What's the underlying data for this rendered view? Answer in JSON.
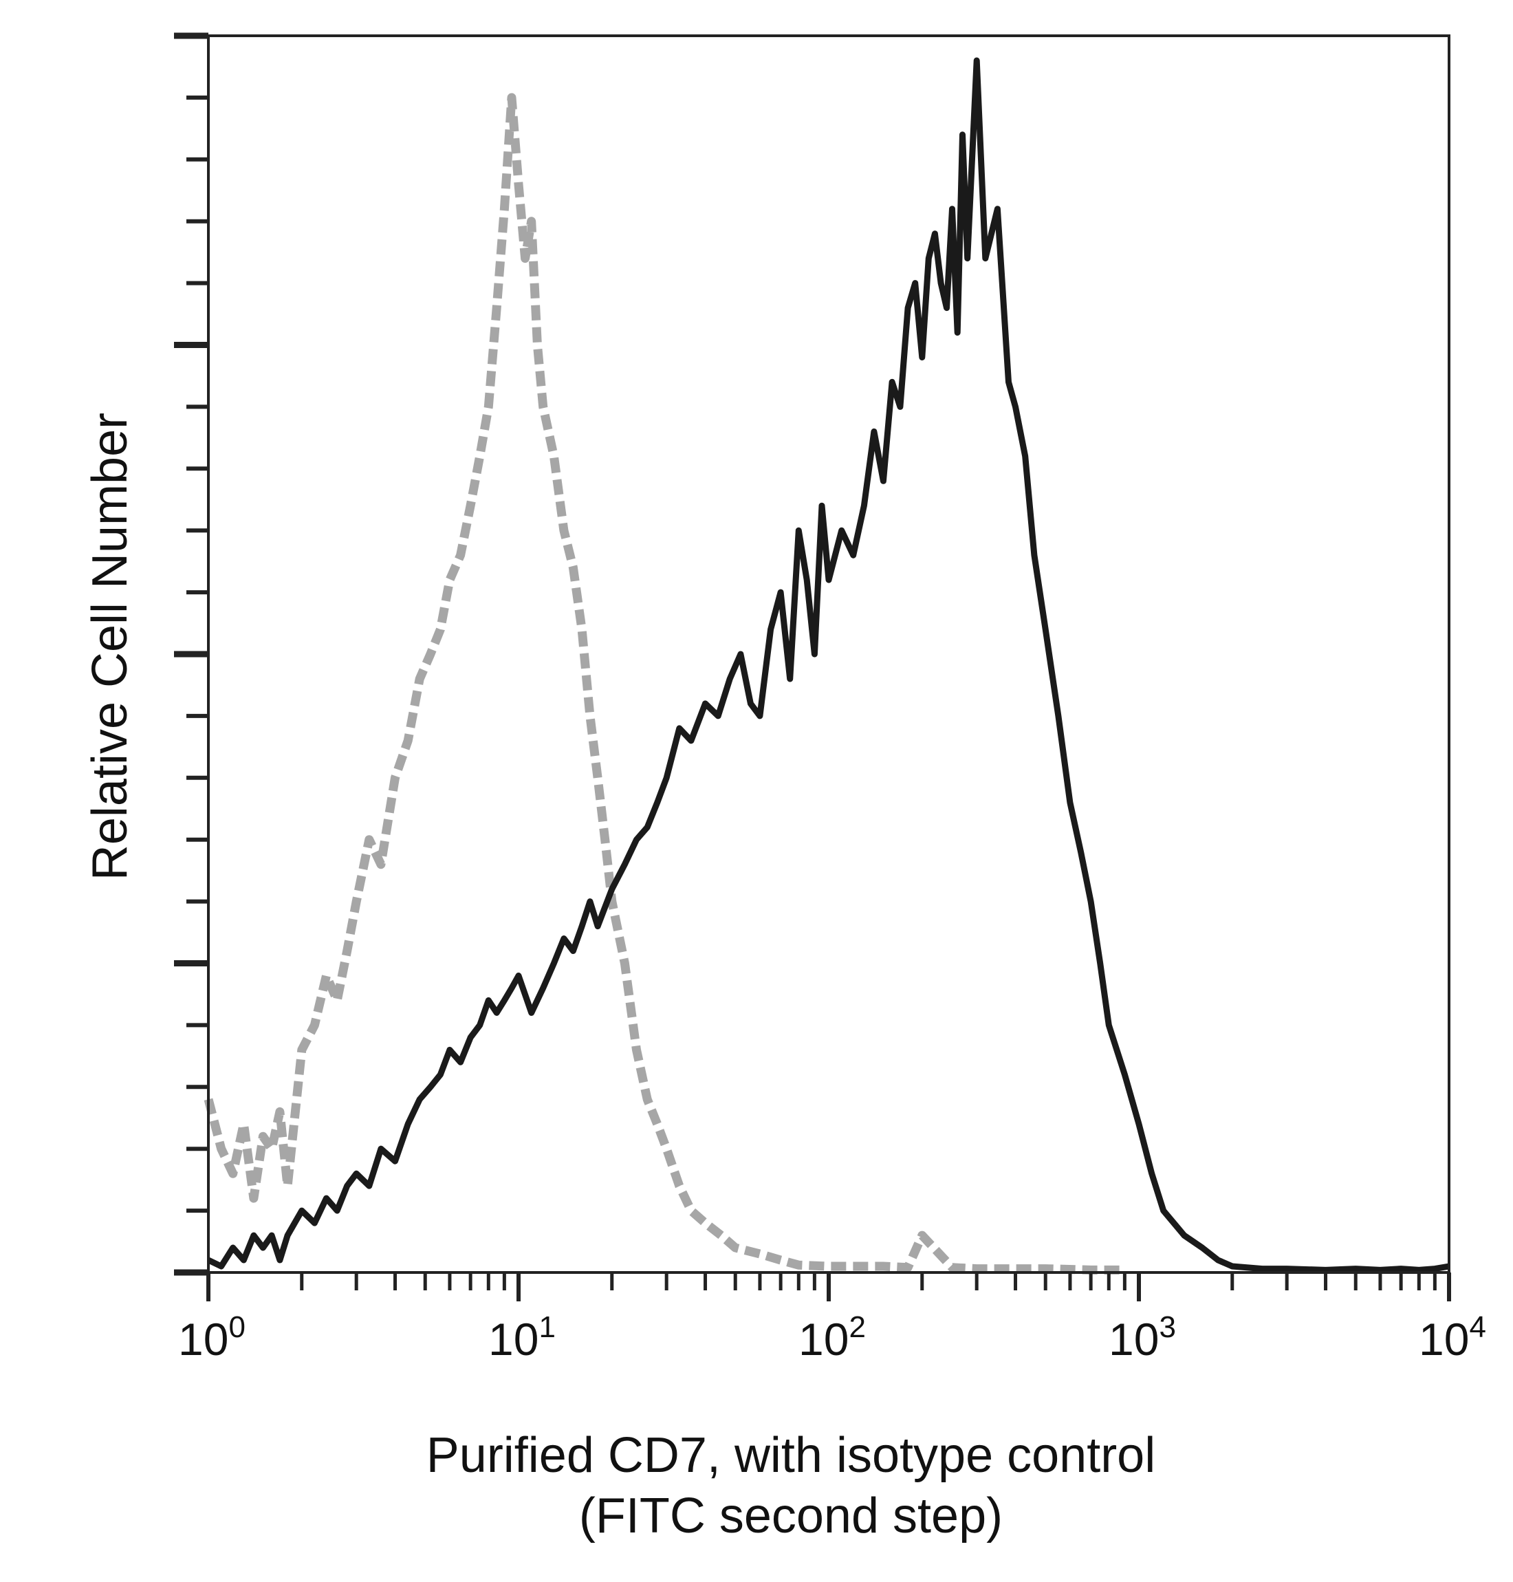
{
  "chart_data": {
    "type": "line",
    "title": "",
    "xlabel_lines": [
      "Purified CD7, with isotype control",
      "(FITC second step)"
    ],
    "ylabel": "Relative Cell Number",
    "x_scale": "log",
    "xlim": [
      1,
      10000
    ],
    "ylim": [
      0,
      100
    ],
    "x_ticks": [
      {
        "value": 1,
        "base": "10",
        "exp": "0"
      },
      {
        "value": 10,
        "base": "10",
        "exp": "1"
      },
      {
        "value": 100,
        "base": "10",
        "exp": "2"
      },
      {
        "value": 1000,
        "base": "10",
        "exp": "3"
      },
      {
        "value": 10000,
        "base": "10",
        "exp": "4"
      }
    ],
    "y_tick_count": 21,
    "grid": false,
    "legend": "none",
    "series": [
      {
        "color": "#a6a6a6",
        "style": "dashed",
        "x": [
          1.0,
          1.1,
          1.2,
          1.3,
          1.4,
          1.5,
          1.6,
          1.7,
          1.8,
          2.0,
          2.2,
          2.4,
          2.6,
          2.8,
          3.0,
          3.3,
          3.6,
          4.0,
          4.4,
          4.8,
          5.2,
          5.6,
          6.0,
          6.5,
          7.0,
          7.5,
          8.0,
          8.5,
          9.0,
          9.5,
          10.0,
          10.5,
          11.0,
          11.5,
          12.0,
          13.0,
          14.0,
          15.0,
          16.0,
          17.0,
          18.0,
          19.0,
          20.0,
          22.0,
          24.0,
          26.0,
          28.0,
          30.0,
          33.0,
          36.0,
          40.0,
          45.0,
          50.0,
          60.0,
          70.0,
          80.0,
          100.0,
          120.0,
          150.0,
          180.0,
          200.0,
          250.0,
          300.0,
          400.0,
          500.0,
          700.0,
          900.0
        ],
        "y": [
          14,
          10,
          8,
          12,
          6,
          11,
          10,
          13,
          7,
          18,
          20,
          24,
          22,
          26,
          30,
          35,
          33,
          40,
          43,
          48,
          50,
          52,
          56,
          58,
          62,
          66,
          70,
          78,
          86,
          95,
          88,
          82,
          85,
          75,
          70,
          66,
          60,
          57,
          52,
          45,
          40,
          35,
          30,
          25,
          18,
          14,
          12,
          10,
          7,
          5,
          4,
          3,
          2,
          1.5,
          1,
          0.6,
          0.5,
          0.5,
          0.5,
          0.4,
          3,
          0.4,
          0.3,
          0.3,
          0.3,
          0.2,
          0.2
        ]
      },
      {
        "color": "#1a1a1a",
        "style": "solid",
        "x": [
          1.0,
          1.1,
          1.2,
          1.3,
          1.4,
          1.5,
          1.6,
          1.7,
          1.8,
          2.0,
          2.2,
          2.4,
          2.6,
          2.8,
          3.0,
          3.3,
          3.6,
          4.0,
          4.4,
          4.8,
          5.2,
          5.6,
          6.0,
          6.5,
          7.0,
          7.5,
          8.0,
          8.5,
          9.0,
          9.5,
          10.0,
          11.0,
          12.0,
          13.0,
          14.0,
          15.0,
          16.0,
          17.0,
          18.0,
          20.0,
          22.0,
          24.0,
          26.0,
          28.0,
          30.0,
          33.0,
          36.0,
          40.0,
          44.0,
          48.0,
          52.0,
          56.0,
          60.0,
          65.0,
          70.0,
          75.0,
          80.0,
          85.0,
          90.0,
          95.0,
          100.0,
          110.0,
          120.0,
          130.0,
          140.0,
          150.0,
          160.0,
          170.0,
          180.0,
          190.0,
          200.0,
          210.0,
          220.0,
          230.0,
          240.0,
          250.0,
          260.0,
          270.0,
          280.0,
          300.0,
          320.0,
          350.0,
          380.0,
          400.0,
          430.0,
          460.0,
          500.0,
          550.0,
          600.0,
          650.0,
          700.0,
          750.0,
          800.0,
          900.0,
          1000.0,
          1100.0,
          1200.0,
          1400.0,
          1600.0,
          1800.0,
          2000.0,
          2500.0,
          3000.0,
          4000.0,
          5000.0,
          6000.0,
          7000.0,
          8000.0,
          9000.0,
          10000.0
        ],
        "y": [
          1,
          0.5,
          2,
          1,
          3,
          2,
          3,
          1,
          3,
          5,
          4,
          6,
          5,
          7,
          8,
          7,
          10,
          9,
          12,
          14,
          15,
          16,
          18,
          17,
          19,
          20,
          22,
          21,
          22,
          23,
          24,
          21,
          23,
          25,
          27,
          26,
          28,
          30,
          28,
          31,
          33,
          35,
          36,
          38,
          40,
          44,
          43,
          46,
          45,
          48,
          50,
          46,
          45,
          52,
          55,
          48,
          60,
          56,
          50,
          62,
          56,
          60,
          58,
          62,
          68,
          64,
          72,
          70,
          78,
          80,
          74,
          82,
          84,
          80,
          78,
          86,
          76,
          92,
          82,
          98,
          82,
          86,
          72,
          70,
          66,
          58,
          52,
          45,
          38,
          34,
          30,
          25,
          20,
          16,
          12,
          8,
          5,
          3,
          2,
          1,
          0.5,
          0.3,
          0.3,
          0.2,
          0.3,
          0.2,
          0.3,
          0.2,
          0.3,
          0.5
        ]
      }
    ]
  }
}
